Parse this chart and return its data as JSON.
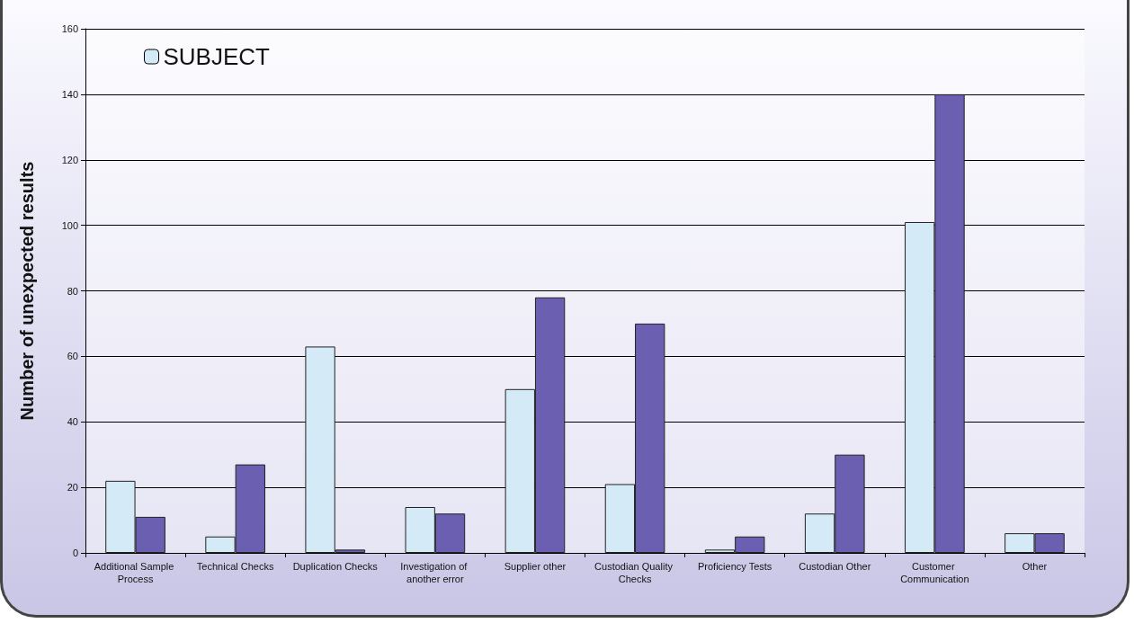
{
  "chart_data": {
    "type": "bar",
    "ylabel": "Number of unexpected results",
    "categories": [
      "Additional Sample Process",
      "Technical Checks",
      "Duplication Checks",
      "Investigation of another error",
      "Supplier other",
      "Custodian Quality Checks",
      "Proficiency Tests",
      "Custodian Other",
      "Customer Communication",
      "Other"
    ],
    "series": [
      {
        "name": "SUBJECT",
        "color": "#d4eaf7",
        "values": [
          22,
          5,
          63,
          14,
          50,
          21,
          1,
          12,
          101,
          6
        ]
      },
      {
        "color": "#6a5fb0",
        "values": [
          11,
          27,
          1,
          12,
          78,
          70,
          5,
          30,
          140,
          6
        ]
      }
    ],
    "ylim": [
      0,
      160
    ],
    "yticks": [
      0,
      20,
      40,
      60,
      80,
      100,
      120,
      140,
      160
    ],
    "grid": "y",
    "legend": "top left"
  }
}
